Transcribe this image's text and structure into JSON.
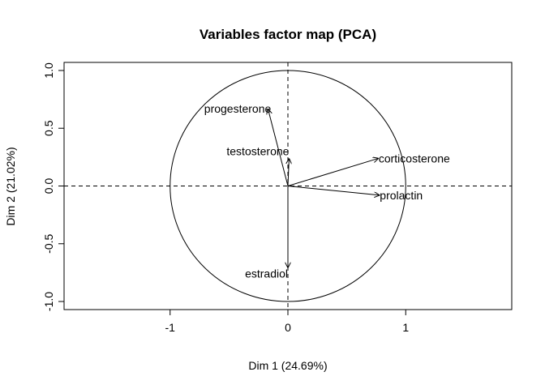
{
  "chart_data": {
    "type": "scatter",
    "title": "Variables factor map (PCA)",
    "xlabel": "Dim 1 (24.69%)",
    "ylabel": "Dim 2 (21.02%)",
    "xlim": [
      -1.9,
      1.9
    ],
    "ylim": [
      -1.07,
      1.07
    ],
    "xticks": [
      -1,
      0,
      1
    ],
    "xtick_labels": [
      "-1",
      "0",
      "1"
    ],
    "yticks": [
      -1.0,
      -0.5,
      0.0,
      0.5,
      1.0
    ],
    "ytick_labels": [
      "-1.0",
      "-0.5",
      "0.0",
      "0.5",
      "1.0"
    ],
    "grid": false,
    "unit_circle": true,
    "reference_lines": {
      "x": 0,
      "y": 0,
      "style": "dashed"
    },
    "variables": [
      {
        "name": "progesterone",
        "x": -0.17,
        "y": 0.67
      },
      {
        "name": "testosterone",
        "x": 0.01,
        "y": 0.24
      },
      {
        "name": "corticosterone",
        "x": 0.77,
        "y": 0.24
      },
      {
        "name": "prolactin",
        "x": 0.78,
        "y": -0.08
      },
      {
        "name": "estradiol",
        "x": 0.0,
        "y": -0.71
      }
    ]
  }
}
